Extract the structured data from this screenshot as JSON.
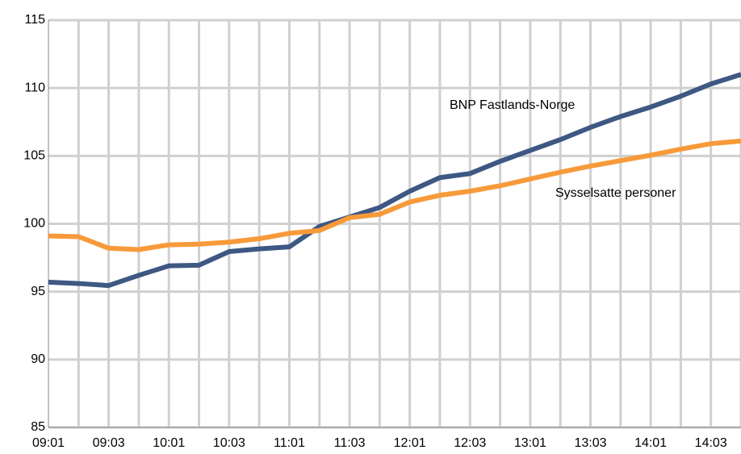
{
  "chart_data": {
    "type": "line",
    "categories": [
      "09:01",
      null,
      "09:03",
      null,
      "10:01",
      null,
      "10:03",
      null,
      "11:01",
      null,
      "11:03",
      null,
      "12:01",
      null,
      "12:03",
      null,
      "13:01",
      null,
      "13:03",
      null,
      "14:01",
      null,
      "14:03",
      null
    ],
    "series": [
      {
        "name": "BNP Fastlands-Norge",
        "color": "#3e5883",
        "values": [
          95.7,
          95.6,
          95.45,
          96.2,
          96.9,
          96.95,
          97.95,
          98.15,
          98.3,
          99.8,
          100.5,
          101.2,
          102.4,
          103.4,
          103.7,
          104.6,
          105.4,
          106.2,
          107.1,
          107.9,
          108.6,
          109.4,
          110.3,
          111.0
        ]
      },
      {
        "name": "Sysselsatte personer",
        "color": "#f79a3a",
        "values": [
          99.1,
          99.05,
          98.2,
          98.1,
          98.45,
          98.5,
          98.65,
          98.9,
          99.3,
          99.5,
          100.45,
          100.7,
          101.6,
          102.1,
          102.4,
          102.8,
          103.3,
          103.8,
          104.25,
          104.65,
          105.05,
          105.5,
          105.9,
          106.1
        ]
      }
    ],
    "ylim": [
      85,
      115
    ],
    "yticks": [
      85,
      90,
      95,
      100,
      105,
      110,
      115
    ],
    "grid": true
  }
}
